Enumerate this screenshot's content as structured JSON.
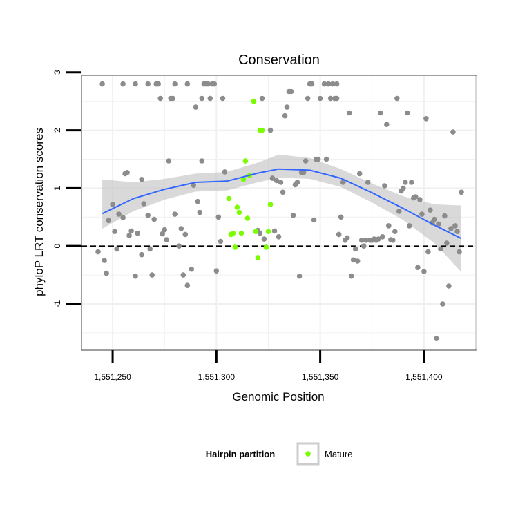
{
  "chart_data": {
    "type": "scatter",
    "title": "Conservation",
    "xlabel": "Genomic Position",
    "ylabel": "phyloP LRT conservation scores",
    "xlim": [
      1551235,
      1551425
    ],
    "ylim": [
      -1.8,
      2.95
    ],
    "x_ticks": [
      1551250,
      1551300,
      1551350,
      1551400
    ],
    "x_tick_labels": [
      "1,551,250",
      "1,551,300",
      "1,551,350",
      "1,551,400"
    ],
    "y_ticks": [
      -1,
      0,
      1,
      2,
      3
    ],
    "y_tick_labels": [
      "-1",
      "0",
      "1",
      "2",
      "3"
    ],
    "grid": true,
    "reference_line": {
      "y": 0,
      "style": "dashed"
    },
    "legend": {
      "title": "Hairpin partition",
      "position": "bottom",
      "entries": [
        "Mature"
      ]
    },
    "colors": {
      "background": "#ffffff",
      "other_points": "#8c8c8c",
      "mature_points": "#7cfc00",
      "smooth_line": "#3366ff",
      "ribbon": "#bfbfbf",
      "grid": "#f0f0f0",
      "panel_border": "#7f7f7f"
    },
    "smooth": {
      "x": [
        1551245,
        1551260,
        1551275,
        1551290,
        1551305,
        1551320,
        1551330,
        1551345,
        1551360,
        1551375,
        1551390,
        1551405,
        1551418
      ],
      "y": [
        0.56,
        0.82,
        0.98,
        1.1,
        1.12,
        1.26,
        1.33,
        1.31,
        1.17,
        0.92,
        0.65,
        0.36,
        0.13
      ],
      "lower": [
        0.3,
        0.6,
        0.8,
        0.94,
        0.96,
        1.1,
        1.18,
        1.16,
        1.02,
        0.75,
        0.45,
        0.05,
        -0.45
      ],
      "upper": [
        1.15,
        1.1,
        1.16,
        1.25,
        1.28,
        1.44,
        1.58,
        1.52,
        1.33,
        1.08,
        0.86,
        0.72,
        0.7
      ]
    },
    "series": [
      {
        "name": "",
        "color": "#8c8c8c",
        "points": [
          [
            1551243,
            -0.1
          ],
          [
            1551245,
            2.8
          ],
          [
            1551246,
            -0.25
          ],
          [
            1551247,
            -0.47
          ],
          [
            1551248,
            0.44
          ],
          [
            1551250,
            0.72
          ],
          [
            1551251,
            0.25
          ],
          [
            1551252,
            -0.05
          ],
          [
            1551253,
            0.55
          ],
          [
            1551255,
            2.8
          ],
          [
            1551255,
            0.49
          ],
          [
            1551256,
            1.25
          ],
          [
            1551257,
            1.27
          ],
          [
            1551258,
            0.18
          ],
          [
            1551259,
            0.26
          ],
          [
            1551261,
            2.8
          ],
          [
            1551261,
            -0.52
          ],
          [
            1551262,
            0.22
          ],
          [
            1551264,
            1.15
          ],
          [
            1551264,
            -0.15
          ],
          [
            1551265,
            0.73
          ],
          [
            1551267,
            2.8
          ],
          [
            1551267,
            0.53
          ],
          [
            1551268,
            -0.05
          ],
          [
            1551269,
            -0.5
          ],
          [
            1551270,
            0.46
          ],
          [
            1551271,
            2.8
          ],
          [
            1551272,
            2.8
          ],
          [
            1551273,
            2.55
          ],
          [
            1551274,
            0.21
          ],
          [
            1551275,
            0.28
          ],
          [
            1551276,
            0.11
          ],
          [
            1551277,
            1.47
          ],
          [
            1551278,
            2.55
          ],
          [
            1551279,
            2.55
          ],
          [
            1551280,
            2.8
          ],
          [
            1551280,
            0.55
          ],
          [
            1551282,
            0.0
          ],
          [
            1551283,
            0.3
          ],
          [
            1551284,
            -0.5
          ],
          [
            1551285,
            0.2
          ],
          [
            1551286,
            -0.68
          ],
          [
            1551286,
            2.8
          ],
          [
            1551288,
            -0.4
          ],
          [
            1551289,
            1.05
          ],
          [
            1551290,
            2.4
          ],
          [
            1551291,
            0.77
          ],
          [
            1551292,
            0.58
          ],
          [
            1551293,
            1.47
          ],
          [
            1551293,
            2.55
          ],
          [
            1551294,
            2.8
          ],
          [
            1551295,
            2.8
          ],
          [
            1551296,
            2.8
          ],
          [
            1551297,
            2.55
          ],
          [
            1551298,
            2.8
          ],
          [
            1551299,
            2.8
          ],
          [
            1551300,
            -0.43
          ],
          [
            1551301,
            0.5
          ],
          [
            1551302,
            0.08
          ],
          [
            1551303,
            2.55
          ],
          [
            1551304,
            1.28
          ],
          [
            1551320,
            0.27
          ],
          [
            1551321,
            0.22
          ],
          [
            1551322,
            2.55
          ],
          [
            1551323,
            0.12
          ],
          [
            1551326,
            2.0
          ],
          [
            1551327,
            1.17
          ],
          [
            1551328,
            0.26
          ],
          [
            1551329,
            1.13
          ],
          [
            1551330,
            0.16
          ],
          [
            1551331,
            1.1
          ],
          [
            1551332,
            0.93
          ],
          [
            1551333,
            2.25
          ],
          [
            1551334,
            2.4
          ],
          [
            1551335,
            2.67
          ],
          [
            1551336,
            2.67
          ],
          [
            1551337,
            0.53
          ],
          [
            1551338,
            1.06
          ],
          [
            1551339,
            1.1
          ],
          [
            1551340,
            -0.52
          ],
          [
            1551341,
            1.27
          ],
          [
            1551342,
            1.27
          ],
          [
            1551343,
            1.47
          ],
          [
            1551344,
            2.55
          ],
          [
            1551345,
            2.8
          ],
          [
            1551346,
            2.8
          ],
          [
            1551347,
            0.45
          ],
          [
            1551348,
            1.5
          ],
          [
            1551349,
            1.5
          ],
          [
            1551350,
            2.55
          ],
          [
            1551352,
            2.8
          ],
          [
            1551353,
            1.5
          ],
          [
            1551354,
            2.8
          ],
          [
            1551355,
            2.55
          ],
          [
            1551356,
            2.8
          ],
          [
            1551357,
            2.55
          ],
          [
            1551358,
            2.8
          ],
          [
            1551358,
            2.55
          ],
          [
            1551359,
            0.2
          ],
          [
            1551360,
            0.5
          ],
          [
            1551361,
            1.1
          ],
          [
            1551362,
            0.1
          ],
          [
            1551363,
            0.14
          ],
          [
            1551364,
            2.3
          ],
          [
            1551365,
            -0.52
          ],
          [
            1551366,
            -0.24
          ],
          [
            1551367,
            -0.05
          ],
          [
            1551368,
            -0.26
          ],
          [
            1551369,
            1.25
          ],
          [
            1551370,
            0.1
          ],
          [
            1551371,
            0.0
          ],
          [
            1551372,
            0.1
          ],
          [
            1551373,
            1.1
          ],
          [
            1551374,
            0.1
          ],
          [
            1551375,
            0.1
          ],
          [
            1551376,
            0.12
          ],
          [
            1551377,
            0.1
          ],
          [
            1551378,
            0.12
          ],
          [
            1551379,
            2.3
          ],
          [
            1551380,
            0.16
          ],
          [
            1551381,
            1.04
          ],
          [
            1551382,
            2.1
          ],
          [
            1551383,
            0.35
          ],
          [
            1551384,
            0.11
          ],
          [
            1551385,
            0.1
          ],
          [
            1551386,
            0.25
          ],
          [
            1551387,
            2.55
          ],
          [
            1551388,
            0.6
          ],
          [
            1551389,
            0.95
          ],
          [
            1551390,
            1.0
          ],
          [
            1551391,
            1.1
          ],
          [
            1551392,
            2.3
          ],
          [
            1551393,
            0.35
          ],
          [
            1551394,
            1.1
          ],
          [
            1551395,
            0.83
          ],
          [
            1551396,
            0.85
          ],
          [
            1551397,
            -0.37
          ],
          [
            1551398,
            0.8
          ],
          [
            1551399,
            0.55
          ],
          [
            1551400,
            -0.44
          ],
          [
            1551401,
            2.2
          ],
          [
            1551402,
            -0.1
          ],
          [
            1551403,
            0.62
          ],
          [
            1551404,
            0.4
          ],
          [
            1551405,
            0.46
          ],
          [
            1551406,
            -1.6
          ],
          [
            1551407,
            0.38
          ],
          [
            1551408,
            -0.05
          ],
          [
            1551409,
            -1.0
          ],
          [
            1551410,
            0.52
          ],
          [
            1551411,
            0.05
          ],
          [
            1551412,
            -0.69
          ],
          [
            1551413,
            0.3
          ],
          [
            1551414,
            1.97
          ],
          [
            1551415,
            0.35
          ],
          [
            1551416,
            0.25
          ],
          [
            1551417,
            -0.1
          ],
          [
            1551418,
            0.93
          ]
        ]
      },
      {
        "name": "Mature",
        "color": "#7cfc00",
        "points": [
          [
            1551306,
            0.82
          ],
          [
            1551307,
            0.2
          ],
          [
            1551308,
            0.22
          ],
          [
            1551309,
            -0.02
          ],
          [
            1551310,
            0.67
          ],
          [
            1551311,
            0.58
          ],
          [
            1551312,
            0.22
          ],
          [
            1551313,
            1.15
          ],
          [
            1551314,
            1.47
          ],
          [
            1551315,
            0.48
          ],
          [
            1551316,
            1.22
          ],
          [
            1551318,
            2.5
          ],
          [
            1551319,
            0.25
          ],
          [
            1551320,
            -0.2
          ],
          [
            1551321,
            2.0
          ],
          [
            1551322,
            2.0
          ],
          [
            1551324,
            -0.02
          ],
          [
            1551325,
            0.25
          ],
          [
            1551326,
            0.72
          ]
        ]
      }
    ]
  }
}
